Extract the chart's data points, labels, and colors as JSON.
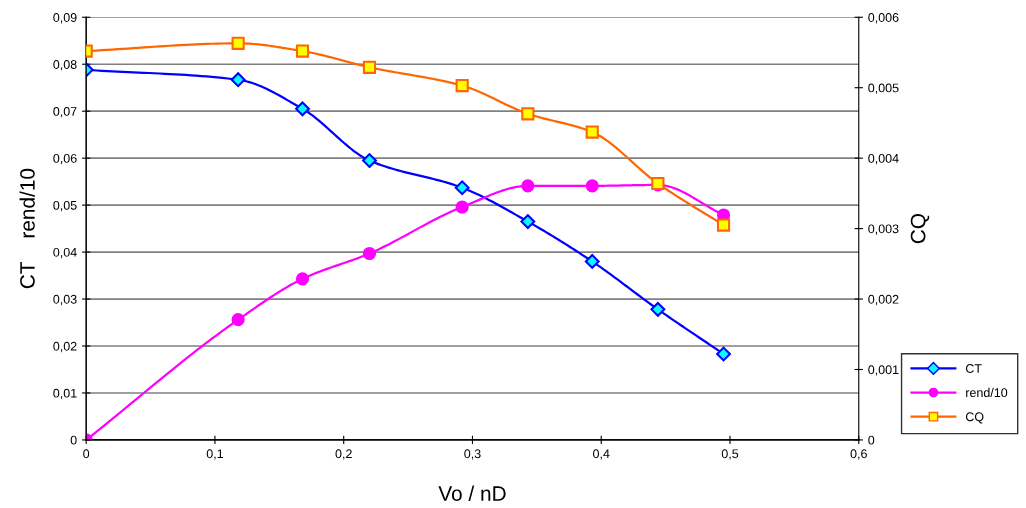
{
  "chart_data": {
    "type": "line",
    "xlabel": "Vo / nD",
    "ylabel": "CT    rend/10",
    "y2label": "CQ",
    "x": [
      0,
      0.118,
      0.168,
      0.22,
      0.292,
      0.343,
      0.393,
      0.444,
      0.495
    ],
    "series": [
      {
        "name": "CT",
        "color": "#0000ff",
        "marker": "diamond",
        "values": [
          0.0788,
          0.0767,
          0.0705,
          0.0595,
          0.0537,
          0.0465,
          0.038,
          0.0278,
          0.0183
        ]
      },
      {
        "name": "rend/10",
        "color": "#ff00ff",
        "marker": "circle",
        "values": [
          0,
          0.0256,
          0.0343,
          0.0397,
          0.0496,
          0.0541,
          0.0541,
          0.0543,
          0.0479
        ]
      },
      {
        "name": "CQ",
        "color": "#ff6600",
        "marker": "square",
        "axis": "y2",
        "values": [
          0.00552,
          0.00563,
          0.00552,
          0.00529,
          0.00503,
          0.00463,
          0.00437,
          0.00364,
          0.00305
        ]
      }
    ],
    "xlim": [
      0,
      0.6
    ],
    "xticks": [
      0,
      {
        "value": 0.1,
        "label": "0,1"
      },
      {
        "value": 0.2,
        "label": "0,2"
      },
      {
        "value": 0.3,
        "label": "0,3"
      },
      {
        "value": 0.4,
        "label": "0,4"
      },
      {
        "value": 0.5,
        "label": "0,5"
      },
      {
        "value": 0.6,
        "label": "0,6"
      }
    ],
    "ylim": [
      0,
      0.09
    ],
    "yticks": [
      0,
      {
        "value": 0.01,
        "label": "0,01"
      },
      {
        "value": 0.02,
        "label": "0,02"
      },
      {
        "value": 0.03,
        "label": "0,03"
      },
      {
        "value": 0.04,
        "label": "0,04"
      },
      {
        "value": 0.05,
        "label": "0,05"
      },
      {
        "value": 0.06,
        "label": "0,06"
      },
      {
        "value": 0.07,
        "label": "0,07"
      },
      {
        "value": 0.08,
        "label": "0,08"
      },
      {
        "value": 0.09,
        "label": "0,09"
      }
    ],
    "y2lim": [
      0,
      0.006
    ],
    "y2ticks": [
      0,
      {
        "value": 0.001,
        "label": "0,001"
      },
      {
        "value": 0.002,
        "label": "0,002"
      },
      {
        "value": 0.003,
        "label": "0,003"
      },
      {
        "value": 0.004,
        "label": "0,004"
      },
      {
        "value": 0.005,
        "label": "0,005"
      },
      {
        "value": 0.006,
        "label": "0,006"
      }
    ],
    "grid": "y",
    "legend": "bottom right",
    "line_style": "solid"
  }
}
